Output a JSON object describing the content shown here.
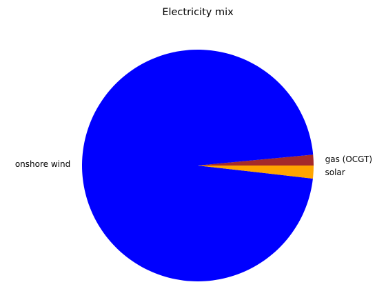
{
  "chart_data": {
    "type": "pie",
    "title": "Electricity mix",
    "start_angle_deg": 0,
    "direction": "counterclockwise",
    "slices": [
      {
        "label": "gas (OCGT)",
        "value": 1.5,
        "color": "#a52a2a"
      },
      {
        "label": "onshore wind",
        "value": 96.7,
        "color": "#0000ff"
      },
      {
        "label": "solar",
        "value": 1.8,
        "color": "#ffa500"
      }
    ],
    "legend": "none"
  }
}
